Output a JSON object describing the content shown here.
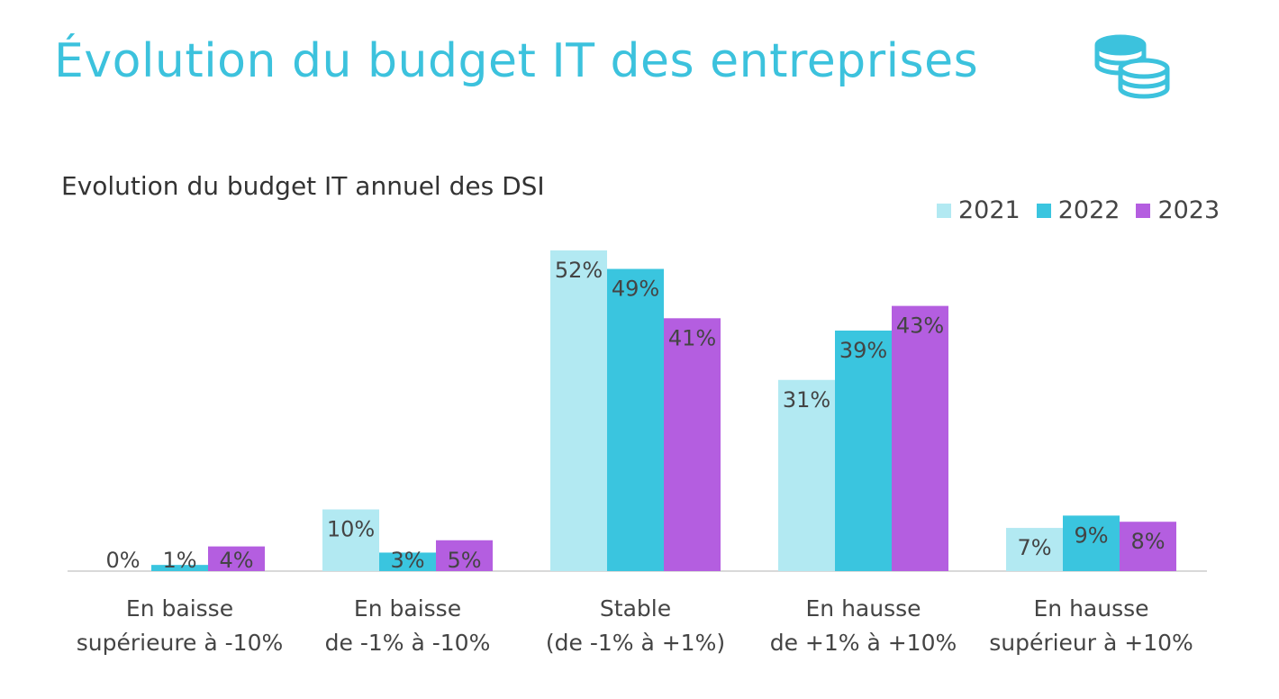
{
  "header": {
    "title": "Évolution du budget IT des entreprises",
    "icon": "coins-stack-icon"
  },
  "chart_data": {
    "type": "bar",
    "title": "Evolution du budget IT annuel des DSI",
    "categories": [
      [
        "En baisse",
        "supérieure à -10%"
      ],
      [
        "En baisse",
        "de -1% à -10%"
      ],
      [
        "Stable",
        "(de -1% à +1%)"
      ],
      [
        "En hausse",
        "de +1% à +10%"
      ],
      [
        "En hausse",
        "supérieur à +10%"
      ]
    ],
    "series": [
      {
        "name": "2021",
        "color": "#b2e9f2",
        "values": [
          0,
          10,
          52,
          31,
          7
        ]
      },
      {
        "name": "2022",
        "color": "#3ac5df",
        "values": [
          1,
          3,
          49,
          39,
          9
        ]
      },
      {
        "name": "2023",
        "color": "#b45ee0",
        "values": [
          4,
          5,
          41,
          43,
          8
        ]
      }
    ],
    "value_suffix": "%",
    "ylim": [
      0,
      55
    ],
    "grid": false,
    "legend": "top-right"
  }
}
